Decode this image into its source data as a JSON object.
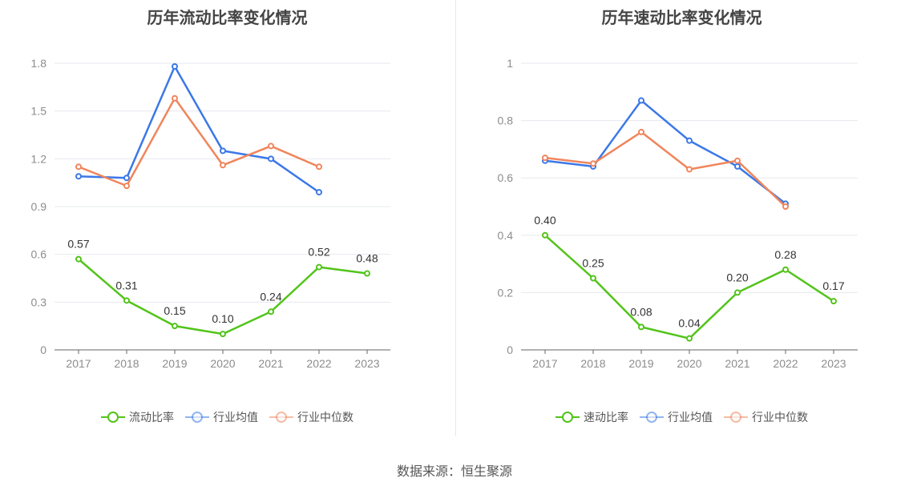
{
  "source_label": "数据来源：恒生聚源",
  "chart_data": [
    {
      "type": "line",
      "title": "历年流动比率变化情况",
      "categories": [
        "2017",
        "2018",
        "2019",
        "2020",
        "2021",
        "2022",
        "2023"
      ],
      "ylim": [
        0,
        1.8
      ],
      "yticks": [
        "0",
        "0.3",
        "0.6",
        "0.9",
        "1.2",
        "1.5",
        "1.8"
      ],
      "grid": true,
      "legend_placement": "bottom-center",
      "series": [
        {
          "name": "流动比率",
          "color": "#52c41a",
          "values": [
            0.57,
            0.31,
            0.15,
            0.1,
            0.24,
            0.52,
            0.48
          ],
          "labels": [
            "0.57",
            "0.31",
            "0.15",
            "0.10",
            "0.24",
            "0.52",
            "0.48"
          ]
        },
        {
          "name": "行业均值",
          "color": "#3b78e7",
          "values": [
            1.09,
            1.08,
            1.78,
            1.25,
            1.2,
            0.99,
            null
          ]
        },
        {
          "name": "行业中位数",
          "color": "#f0855c",
          "values": [
            1.15,
            1.03,
            1.58,
            1.16,
            1.28,
            1.15,
            null
          ]
        }
      ]
    },
    {
      "type": "line",
      "title": "历年速动比率变化情况",
      "categories": [
        "2017",
        "2018",
        "2019",
        "2020",
        "2021",
        "2022",
        "2023"
      ],
      "ylim": [
        0,
        1
      ],
      "yticks": [
        "0",
        "0.2",
        "0.4",
        "0.6",
        "0.8",
        "1"
      ],
      "grid": true,
      "legend_placement": "bottom-center",
      "series": [
        {
          "name": "速动比率",
          "color": "#52c41a",
          "values": [
            0.4,
            0.25,
            0.08,
            0.04,
            0.2,
            0.28,
            0.17
          ],
          "labels": [
            "0.40",
            "0.25",
            "0.08",
            "0.04",
            "0.20",
            "0.28",
            "0.17"
          ]
        },
        {
          "name": "行业均值",
          "color": "#3b78e7",
          "values": [
            0.66,
            0.64,
            0.87,
            0.73,
            0.64,
            0.51,
            null
          ]
        },
        {
          "name": "行业中位数",
          "color": "#f0855c",
          "values": [
            0.67,
            0.65,
            0.76,
            0.63,
            0.66,
            0.5,
            null
          ]
        }
      ]
    }
  ]
}
